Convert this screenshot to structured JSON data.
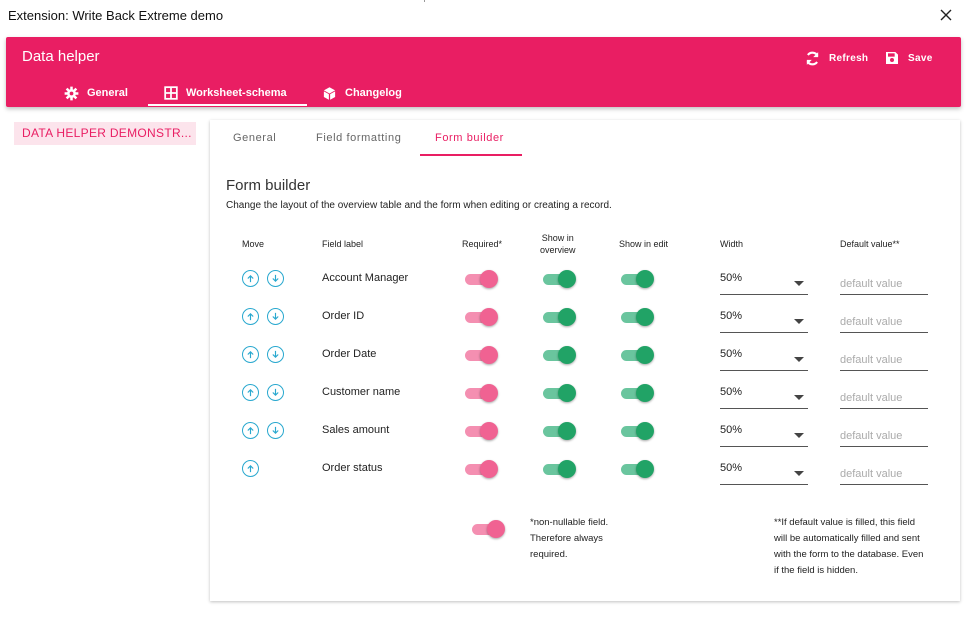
{
  "window": {
    "title": "Extension: Write Back Extreme demo"
  },
  "header": {
    "app_title": "Data helper",
    "refresh_label": "Refresh",
    "save_label": "Save",
    "tabs": [
      {
        "label": "General",
        "icon": "gear-icon"
      },
      {
        "label": "Worksheet-schema",
        "icon": "grid-icon"
      },
      {
        "label": "Changelog",
        "icon": "cube-icon"
      }
    ],
    "active_tab": "Worksheet-schema"
  },
  "sidebar": {
    "items": [
      {
        "label": "DATA HELPER DEMONSTR..."
      }
    ]
  },
  "subtabs": [
    {
      "label": "General"
    },
    {
      "label": "Field formatting"
    },
    {
      "label": "Form builder"
    }
  ],
  "active_subtab": "Form builder",
  "form_builder": {
    "title": "Form builder",
    "description": "Change the layout of the overview table and the form when editing or creating a record.",
    "columns": {
      "move": "Move",
      "field_label": "Field label",
      "required": "Required*",
      "show_overview_1": "Show in",
      "show_overview_2": "overview",
      "show_edit": "Show in edit",
      "width": "Width",
      "default_value": "Default value**"
    },
    "rows": [
      {
        "label": "Account Manager",
        "required": true,
        "show_overview": true,
        "show_edit": true,
        "width": "50%",
        "default_placeholder": "default value",
        "move_down": true
      },
      {
        "label": "Order ID",
        "required": true,
        "show_overview": true,
        "show_edit": true,
        "width": "50%",
        "default_placeholder": "default value",
        "move_down": true
      },
      {
        "label": "Order Date",
        "required": true,
        "show_overview": true,
        "show_edit": true,
        "width": "50%",
        "default_placeholder": "default value",
        "move_down": true
      },
      {
        "label": "Customer name",
        "required": true,
        "show_overview": true,
        "show_edit": true,
        "width": "50%",
        "default_placeholder": "default value",
        "move_down": true
      },
      {
        "label": "Sales amount",
        "required": true,
        "show_overview": true,
        "show_edit": true,
        "width": "50%",
        "default_placeholder": "default value",
        "move_down": true
      },
      {
        "label": "Order status",
        "required": true,
        "show_overview": true,
        "show_edit": true,
        "width": "50%",
        "default_placeholder": "default value",
        "move_down": false
      }
    ],
    "notes": {
      "required_1": "*non-nullable field.",
      "required_2": "Therefore always",
      "required_3": "required.",
      "default_1": "**If default value is filled, this field",
      "default_2": "will be automatically filled and sent",
      "default_3": "with the form to the database. Even",
      "default_4": "if the field is hidden."
    }
  },
  "colors": {
    "brand": "#e91e63",
    "toggle_required": "#f06292",
    "toggle_show": "#21a366",
    "move_button": "#29a8cf"
  }
}
